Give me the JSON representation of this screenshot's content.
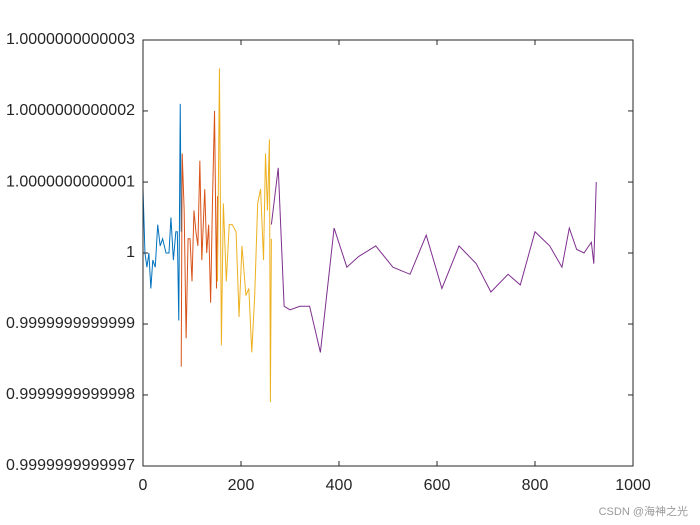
{
  "chart_data": {
    "type": "line",
    "watermark": "CSDN @海神之光",
    "xlim": [
      0,
      1000
    ],
    "xticks": [
      0,
      200,
      400,
      600,
      800,
      1000
    ],
    "ylim": [
      0.9999999999997,
      1.0000000000003
    ],
    "yticks": [
      0.9999999999997,
      0.9999999999998,
      0.9999999999999,
      1,
      1.0000000000001,
      1.0000000000002,
      1.0000000000003
    ],
    "series": [
      {
        "color": "#0072BD",
        "x": [
          0,
          4,
          8,
          12,
          16,
          20,
          25,
          30,
          35,
          40,
          47,
          53,
          57,
          62,
          67,
          70,
          73,
          76,
          78
        ],
        "values": [
          1.00000000000009,
          1,
          0.99999999999998,
          1,
          0.99999999999995,
          0.99999999999999,
          0.99999999999998,
          1.00000000000004,
          1.00000000000001,
          1.00000000000002,
          1,
          1,
          1.00000000000005,
          0.99999999999999,
          1.00000000000003,
          1.00000000000003,
          0.999999999999905,
          1.00000000000021,
          1.00000000000003
        ]
      },
      {
        "color": "#D95319",
        "x": [
          78,
          80,
          84,
          88,
          92,
          96,
          100,
          104,
          108,
          112,
          116,
          120,
          126,
          130,
          134,
          138,
          142,
          146,
          150,
          152
        ],
        "values": [
          0.99999999999984,
          1.00000000000014,
          1.00000000000006,
          0.99999999999988,
          1.00000000000002,
          1.00000000000002,
          0.99999999999996,
          1.00000000000006,
          1.00000000000003,
          1.00000000000001,
          1.00000000000013,
          0.99999999999999,
          1.00000000000009,
          1,
          1.00000000000004,
          0.99999999999993,
          1.00000000000008,
          1.0000000000002,
          0.99999999999995,
          1.00000000000008
        ]
      },
      {
        "color": "#EDB120",
        "x": [
          152,
          156,
          160,
          164,
          170,
          176,
          182,
          190,
          196,
          202,
          210,
          216,
          222,
          228,
          234,
          240,
          246,
          250,
          254,
          258,
          260,
          262
        ],
        "values": [
          0.99999999999996,
          1.00000000000026,
          0.99999999999987,
          1.00000000000007,
          0.99999999999996,
          1.00000000000004,
          1.00000000000004,
          1.00000000000003,
          0.99999999999991,
          1.00000000000001,
          0.99999999999994,
          0.99999999999995,
          0.99999999999986,
          0.99999999999994,
          1.00000000000007,
          1.00000000000009,
          0.99999999999999,
          1.00000000000014,
          1.00000000000006,
          1.00000000000016,
          0.99999999999979,
          1.00000000000002
        ]
      },
      {
        "color": "#7E2F8E",
        "x": [
          262,
          276,
          288,
          300,
          320,
          340,
          362,
          390,
          416,
          440,
          475,
          510,
          545,
          578,
          610,
          645,
          680,
          710,
          745,
          770,
          800,
          830,
          855,
          870,
          885,
          900,
          915,
          920,
          925
        ],
        "values": [
          1.00000000000004,
          1.00000000000012,
          0.999999999999925,
          0.99999999999992,
          0.999999999999925,
          0.999999999999925,
          0.99999999999986,
          1.000000000000035,
          0.99999999999998,
          0.999999999999995,
          1.00000000000001,
          0.99999999999998,
          0.99999999999997,
          1.000000000000025,
          0.99999999999995,
          1.00000000000001,
          0.999999999999985,
          0.999999999999945,
          0.99999999999997,
          0.999999999999955,
          1.00000000000003,
          1.00000000000001,
          0.99999999999998,
          1.000000000000035,
          1.000000000000005,
          1,
          1.000000000000015,
          0.999999999999985,
          1.0000000000001
        ]
      }
    ]
  }
}
